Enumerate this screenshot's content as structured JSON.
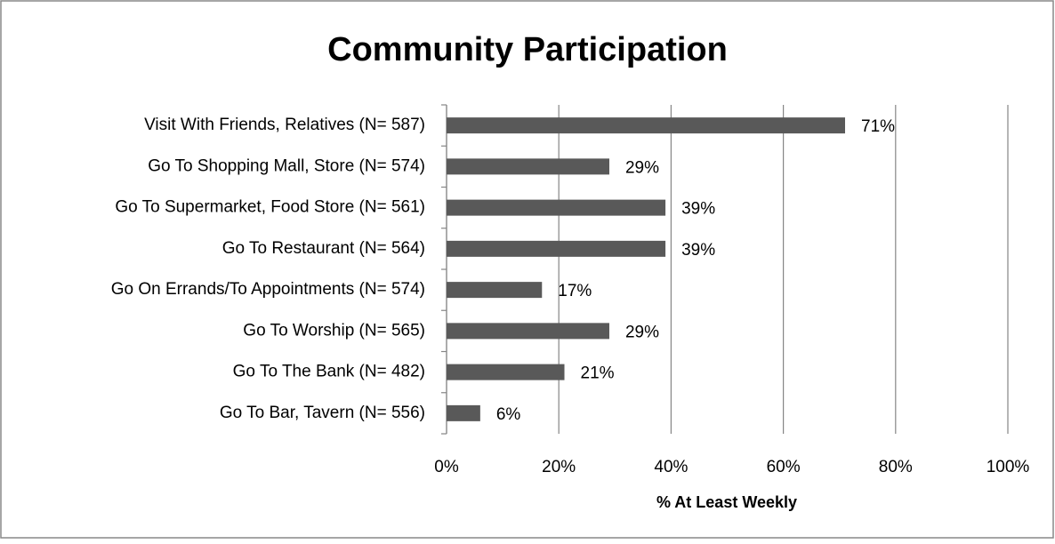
{
  "chart_data": {
    "type": "bar",
    "orientation": "horizontal",
    "title": "Community Participation",
    "x_label": "% At Least Weekly",
    "categories": [
      "Visit With Friends, Relatives (N= 587)",
      "Go To Shopping Mall, Store (N= 574)",
      "Go To Supermarket, Food Store (N= 561)",
      "Go To Restaurant (N= 564)",
      "Go On Errands/To Appointments (N= 574)",
      "Go To Worship (N= 565)",
      "Go To The Bank (N= 482)",
      "Go To Bar, Tavern (N= 556)"
    ],
    "values": [
      71,
      29,
      39,
      39,
      17,
      29,
      21,
      6
    ],
    "value_labels": [
      "71%",
      "29%",
      "39%",
      "39%",
      "17%",
      "29%",
      "21%",
      "6%"
    ],
    "color": "#595959",
    "xlim": [
      0,
      100
    ],
    "xticks": [
      {
        "value": 0,
        "label": "0%"
      },
      {
        "value": 20,
        "label": "20%"
      },
      {
        "value": 40,
        "label": "40%"
      },
      {
        "value": 60,
        "label": "60%"
      },
      {
        "value": 80,
        "label": "80%"
      },
      {
        "value": 100,
        "label": "100%"
      }
    ],
    "grid": true
  }
}
